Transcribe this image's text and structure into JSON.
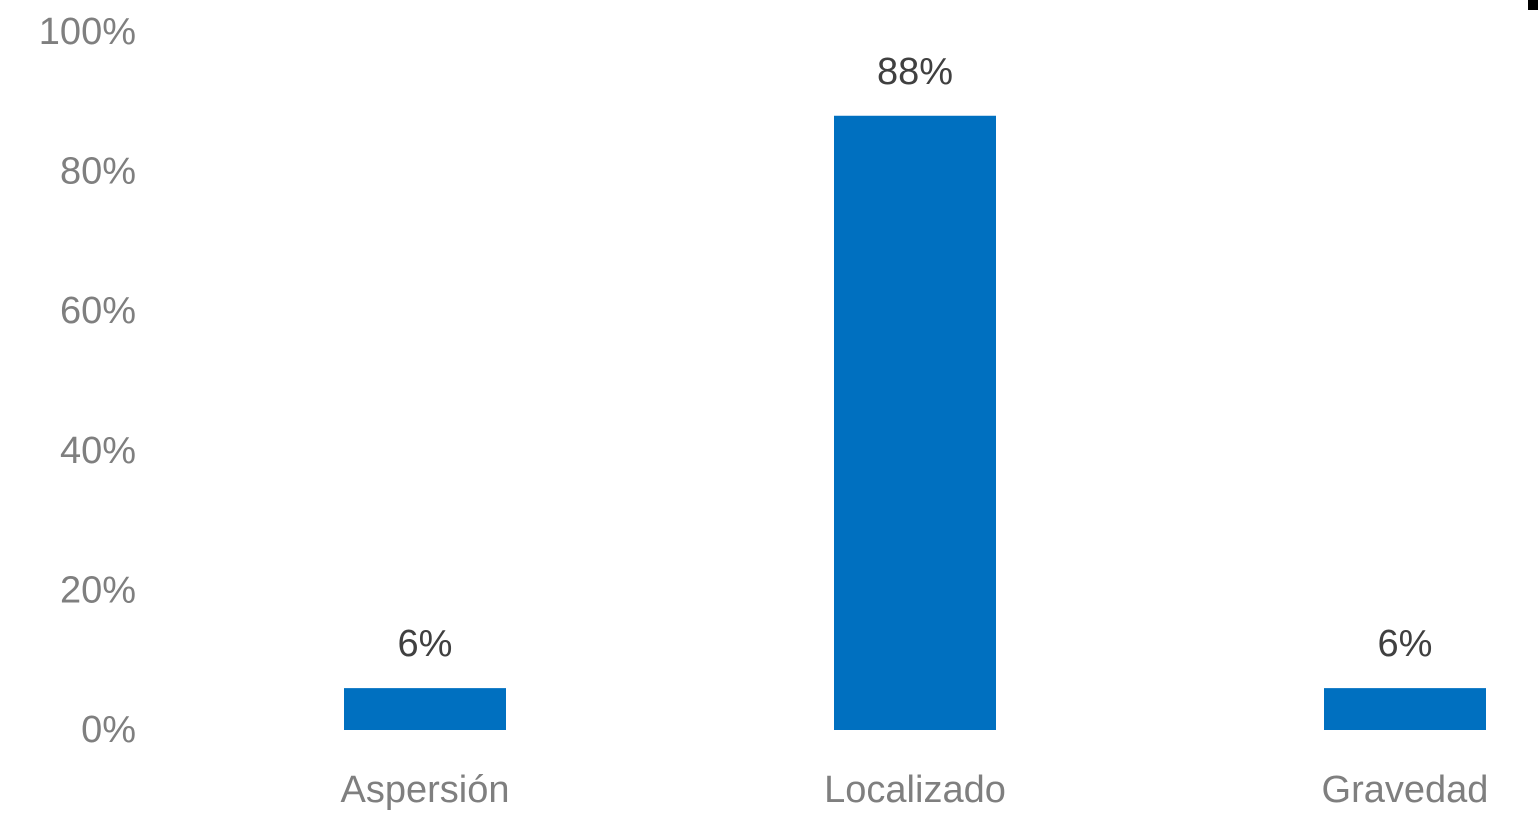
{
  "chart_data": {
    "type": "bar",
    "categories": [
      "Aspersión",
      "Localizado",
      "Gravedad"
    ],
    "values": [
      6,
      88,
      6
    ],
    "data_labels": [
      "6%",
      "88%",
      "6%"
    ],
    "ylim": [
      0,
      100
    ],
    "yticks": [
      0,
      20,
      40,
      60,
      80,
      100
    ],
    "ytick_labels": [
      "0%",
      "20%",
      "40%",
      "60%",
      "80%",
      "100%"
    ],
    "grid": false,
    "legend": false
  },
  "colors": {
    "bar": "#0070C0",
    "tick_text": "#7F7F7F",
    "data_label_text": "#404040"
  }
}
